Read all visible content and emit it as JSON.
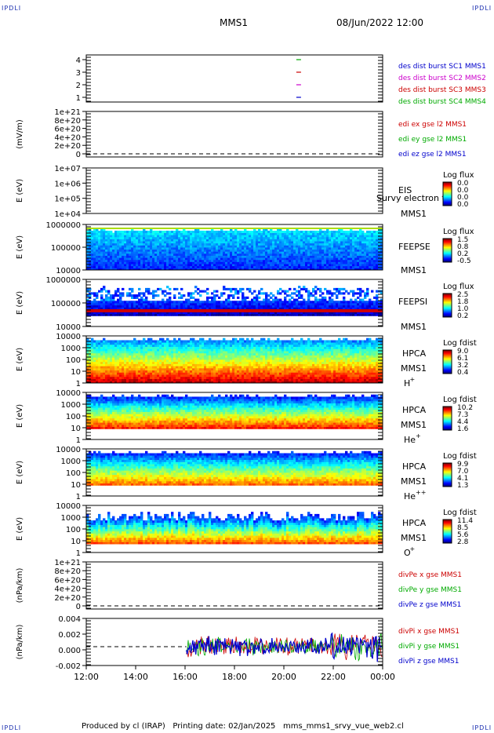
{
  "corner_label": "IPDLI",
  "header": {
    "spacecraft": "MMS1",
    "datetime": "08/Jun/2022 12:00"
  },
  "footer": {
    "produced_by": "Produced by cl (IRAP)",
    "printing_date": "Printing date: 02/Jan/2025",
    "filename": "mms_mms1_srvy_vue_web2.cl"
  },
  "time_axis": {
    "ticks": [
      "12:00",
      "14:00",
      "16:00",
      "18:00",
      "20:00",
      "22:00",
      "00:00"
    ],
    "start_hour": 12,
    "end_hour": 24
  },
  "chart_data": [
    {
      "id": "burst",
      "type": "scatter",
      "yticks": [
        "1",
        "2",
        "3",
        "4"
      ],
      "ylabel": "",
      "legend": [
        {
          "text": "des dist burst SC1 MMS1",
          "color": "#0000cc"
        },
        {
          "text": "des dist burst SC2 MMS2",
          "color": "#cc00cc"
        },
        {
          "text": "des dist burst SC3 MMS3",
          "color": "#cc0000"
        },
        {
          "text": "des dist burst SC4 MMS4",
          "color": "#00aa00"
        }
      ],
      "points": [
        {
          "t": 20.6,
          "y": 1,
          "color": "#0000cc"
        },
        {
          "t": 20.6,
          "y": 2,
          "color": "#cc00cc"
        },
        {
          "t": 20.6,
          "y": 3,
          "color": "#cc0000"
        },
        {
          "t": 20.6,
          "y": 4,
          "color": "#00aa00"
        }
      ]
    },
    {
      "id": "edi",
      "type": "line",
      "ylabel": "(mV/m)",
      "yticks": [
        "0",
        "2e+20",
        "4e+20",
        "6e+20",
        "8e+20",
        "1e+21"
      ],
      "legend": [
        {
          "text": "edi ex gse l2 MMS1",
          "color": "#cc0000"
        },
        {
          "text": "edi ey gse l2 MMS1",
          "color": "#00aa00"
        },
        {
          "text": "edi ez gse l2 MMS1",
          "color": "#0000cc"
        }
      ]
    },
    {
      "id": "eis",
      "type": "heatmap",
      "ylabel": "E (eV)",
      "yticks": [
        "1e+04",
        "1e+05",
        "1e+06",
        "1e+07"
      ],
      "instrument": [
        "EIS",
        "MMS1"
      ],
      "overlay_text": "Survy electron to",
      "colorbar": {
        "title": "Log flux",
        "labels": [
          "0.0",
          "0.0",
          "0.0",
          "0.0"
        ]
      }
    },
    {
      "id": "feepse",
      "type": "heatmap",
      "ylabel": "E (eV)",
      "yticks": [
        "10000",
        "100000",
        "1000000"
      ],
      "instrument": [
        "FEEPSE",
        "MMS1"
      ],
      "colorbar": {
        "title": "Log flux",
        "labels": [
          "1.5",
          "0.8",
          "0.2",
          "-0.5"
        ]
      }
    },
    {
      "id": "feepsi",
      "type": "heatmap",
      "ylabel": "E (eV)",
      "yticks": [
        "10000",
        "100000",
        "1000000"
      ],
      "instrument": [
        "FEEPSI",
        "MMS1"
      ],
      "colorbar": {
        "title": "Log flux",
        "labels": [
          "2.5",
          "1.8",
          "1.0",
          "0.2"
        ]
      }
    },
    {
      "id": "hpca_h",
      "type": "heatmap",
      "ylabel": "E (eV)",
      "yticks": [
        "1",
        "10",
        "100",
        "1000",
        "10000"
      ],
      "instrument": [
        "HPCA",
        "MMS1"
      ],
      "species": "H",
      "charge": "+",
      "colorbar": {
        "title": "Log fdist",
        "labels": [
          "9.0",
          "6.1",
          "3.2",
          "0.4"
        ]
      }
    },
    {
      "id": "hpca_he",
      "type": "heatmap",
      "ylabel": "E (eV)",
      "yticks": [
        "1",
        "10",
        "100",
        "1000",
        "10000"
      ],
      "instrument": [
        "HPCA",
        "MMS1"
      ],
      "species": "He",
      "charge": "+",
      "colorbar": {
        "title": "Log fdist",
        "labels": [
          "10.2",
          "7.3",
          "4.4",
          "1.6"
        ]
      }
    },
    {
      "id": "hpca_hepp",
      "type": "heatmap",
      "ylabel": "E (eV)",
      "yticks": [
        "1",
        "10",
        "100",
        "1000",
        "10000"
      ],
      "instrument": [
        "HPCA",
        "MMS1"
      ],
      "species": "He",
      "charge": "++",
      "colorbar": {
        "title": "Log fdist",
        "labels": [
          "9.9",
          "7.0",
          "4.1",
          "1.3"
        ]
      }
    },
    {
      "id": "hpca_o",
      "type": "heatmap",
      "ylabel": "E (eV)",
      "yticks": [
        "1",
        "10",
        "100",
        "1000",
        "10000"
      ],
      "instrument": [
        "HPCA",
        "MMS1"
      ],
      "species": "O",
      "charge": "+",
      "colorbar": {
        "title": "Log fdist",
        "labels": [
          "11.4",
          "8.5",
          "5.6",
          "2.8"
        ]
      }
    },
    {
      "id": "divpe",
      "type": "line",
      "ylabel": "(nPa/km)",
      "yticks": [
        "0",
        "2e+20",
        "4e+20",
        "6e+20",
        "8e+20",
        "1e+21"
      ],
      "legend": [
        {
          "text": "divPe x gse MMS1",
          "color": "#cc0000"
        },
        {
          "text": "divPe y gse MMS1",
          "color": "#00aa00"
        },
        {
          "text": "divPe z gse MMS1",
          "color": "#0000cc"
        }
      ]
    },
    {
      "id": "divpi",
      "type": "line",
      "ylabel": "(nPa/km)",
      "yticks": [
        "-0.002",
        "0.000",
        "0.002",
        "0.004"
      ],
      "legend": [
        {
          "text": "divPi x gse MMS1",
          "color": "#cc0000"
        },
        {
          "text": "divPi y gse MMS1",
          "color": "#00aa00"
        },
        {
          "text": "divPi z gse MMS1",
          "color": "#0000cc"
        }
      ],
      "data_start_hour": 16.05
    }
  ]
}
